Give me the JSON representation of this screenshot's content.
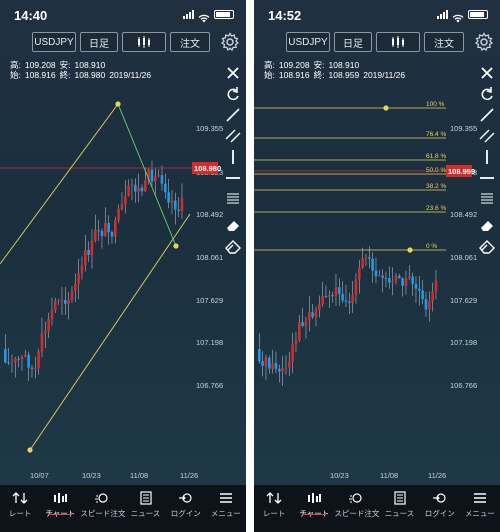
{
  "screens": [
    {
      "id": "left",
      "status": {
        "time": "14:40"
      },
      "toolbar": {
        "symbol": "USDJPY",
        "period": "日足",
        "chart_type_icon": "candlestick-icon",
        "order": "注文"
      },
      "ohlc": {
        "high_label": "高:",
        "high": "109.208",
        "low_label": "安:",
        "low": "108.910",
        "open_label": "始:",
        "open": "108.916",
        "close_label": "終:",
        "close": "108.980",
        "date": "2019/11/26"
      },
      "price_labels": [
        "109.355",
        "108.923",
        "108.492",
        "108.061",
        "107.629",
        "107.198",
        "106.766"
      ],
      "current_price": "108.980",
      "date_labels": [
        "10/07",
        "10/23",
        "11/08",
        "11/26"
      ],
      "drawing": "channel",
      "fib_labels": []
    },
    {
      "id": "right",
      "status": {
        "time": "14:52"
      },
      "toolbar": {
        "symbol": "USDJPY",
        "period": "日足",
        "chart_type_icon": "candlestick-icon",
        "order": "注文"
      },
      "ohlc": {
        "high_label": "高:",
        "high": "109.208",
        "low_label": "安:",
        "low": "108.910",
        "open_label": "始:",
        "open": "108.916",
        "close_label": "終:",
        "close": "108.959",
        "date": "2019/11/26"
      },
      "price_labels": [
        "109.355",
        "108.923",
        "108.492",
        "108.061",
        "107.629",
        "107.198",
        "106.766"
      ],
      "current_price": "108.959",
      "date_labels": [
        "10/23",
        "11/08",
        "11/26"
      ],
      "drawing": "fibonacci",
      "fib_labels": [
        "100 %",
        "76.4 %",
        "61.8 %",
        "50.0 %",
        "38.2 %",
        "23.6 %",
        "0 %"
      ]
    }
  ],
  "side_tools": [
    "close-icon",
    "undo-icon",
    "trendline-icon",
    "parallel-lines-icon",
    "vertical-line-icon",
    "horizontal-line-icon",
    "fibonacci-icon",
    "eraser-icon",
    "eraser-all-icon"
  ],
  "tabs": [
    {
      "label": "レート",
      "icon": "rate-icon",
      "active": false
    },
    {
      "label": "チャート",
      "icon": "chart-icon",
      "active": true
    },
    {
      "label": "スピード注文",
      "icon": "speed-order-icon",
      "active": false
    },
    {
      "label": "ニュース",
      "icon": "news-icon",
      "active": false
    },
    {
      "label": "ログイン",
      "icon": "login-icon",
      "active": false
    },
    {
      "label": "メニュー",
      "icon": "menu-icon",
      "active": false
    }
  ],
  "colors": {
    "up": "#d42b2b",
    "down": "#1e9be8",
    "drawing": "#e8d45a",
    "price_tag": "#d42b2b"
  }
}
